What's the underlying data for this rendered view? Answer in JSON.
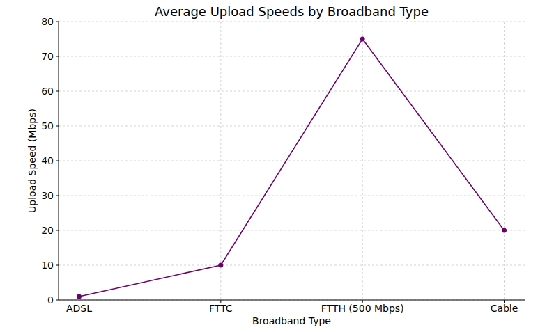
{
  "chart_data": {
    "type": "line",
    "title": "Average Upload Speeds by Broadband Type",
    "x_label": "Broadband Type",
    "y_label": "Upload Speed (Mbps)",
    "categories": [
      "ADSL",
      "FTTC",
      "FTTH (500 Mbps)",
      "Cable"
    ],
    "values": [
      1,
      10,
      75,
      20
    ],
    "color": "#6e006e",
    "marker": "circle",
    "line_style": "solid",
    "ylim": [
      0,
      80
    ],
    "yticks": [
      0,
      10,
      20,
      30,
      40,
      50,
      60,
      70,
      80
    ],
    "grid": true
  }
}
